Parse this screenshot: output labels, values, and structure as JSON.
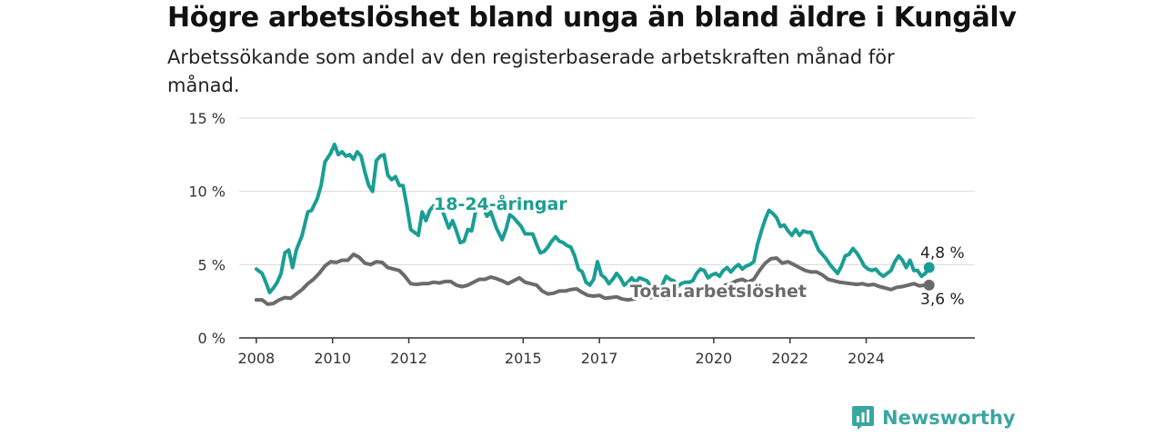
{
  "title": "Högre arbetslöshet bland unga än bland äldre i Kungälv",
  "subtitle": "Arbetssökande som andel av den registerbaserade arbetskraften månad för månad.",
  "brand": {
    "name": "Newsworthy",
    "color": "#3aa79f"
  },
  "chart_data": {
    "type": "line",
    "title": "Högre arbetslöshet bland unga än bland äldre i Kungälv",
    "subtitle": "Arbetssökande som andel av den registerbaserade arbetskraften månad för månad.",
    "ylim": [
      0,
      15
    ],
    "y_ticks": [
      0,
      5,
      10,
      15
    ],
    "y_tick_labels": [
      "0 %",
      "5 %",
      "10 %",
      "15 %"
    ],
    "x_ticks": [
      2008,
      2010,
      2012,
      2015,
      2017,
      2020,
      2022,
      2024
    ],
    "x_tick_labels": [
      "2008",
      "2010",
      "2012",
      "2015",
      "2017",
      "2020",
      "2022",
      "2024"
    ],
    "grid": "horizontal",
    "series": [
      {
        "name": "18-24-åringar",
        "color": "#1a9e93",
        "end_label": "4,8 %",
        "points": [
          [
            2008.0,
            4.7
          ],
          [
            2008.15,
            4.4
          ],
          [
            2008.25,
            3.8
          ],
          [
            2008.35,
            3.1
          ],
          [
            2008.45,
            3.4
          ],
          [
            2008.55,
            3.8
          ],
          [
            2008.65,
            4.4
          ],
          [
            2008.75,
            5.8
          ],
          [
            2008.85,
            6.0
          ],
          [
            2008.95,
            4.8
          ],
          [
            2009.05,
            6.0
          ],
          [
            2009.2,
            7.0
          ],
          [
            2009.35,
            8.6
          ],
          [
            2009.45,
            8.7
          ],
          [
            2009.6,
            9.5
          ],
          [
            2009.7,
            10.4
          ],
          [
            2009.8,
            12.0
          ],
          [
            2009.95,
            12.6
          ],
          [
            2010.05,
            13.2
          ],
          [
            2010.15,
            12.5
          ],
          [
            2010.25,
            12.7
          ],
          [
            2010.35,
            12.4
          ],
          [
            2010.45,
            12.5
          ],
          [
            2010.55,
            12.2
          ],
          [
            2010.65,
            12.7
          ],
          [
            2010.75,
            12.4
          ],
          [
            2010.85,
            11.3
          ],
          [
            2010.95,
            10.4
          ],
          [
            2011.05,
            10.0
          ],
          [
            2011.15,
            12.1
          ],
          [
            2011.25,
            12.4
          ],
          [
            2011.35,
            12.5
          ],
          [
            2011.45,
            11.1
          ],
          [
            2011.55,
            10.8
          ],
          [
            2011.65,
            11.0
          ],
          [
            2011.75,
            10.4
          ],
          [
            2011.85,
            10.4
          ],
          [
            2011.95,
            9.0
          ],
          [
            2012.05,
            7.4
          ],
          [
            2012.15,
            7.2
          ],
          [
            2012.25,
            7.0
          ],
          [
            2012.35,
            8.6
          ],
          [
            2012.45,
            8.0
          ],
          [
            2012.55,
            8.7
          ],
          [
            2012.65,
            9.0
          ],
          [
            2012.75,
            8.7
          ],
          [
            2012.85,
            8.9
          ],
          [
            2012.95,
            8.2
          ],
          [
            2013.05,
            7.5
          ],
          [
            2013.15,
            8.0
          ],
          [
            2013.25,
            7.3
          ],
          [
            2013.35,
            6.5
          ],
          [
            2013.45,
            6.6
          ],
          [
            2013.55,
            7.4
          ],
          [
            2013.65,
            7.3
          ],
          [
            2013.75,
            8.6
          ],
          [
            2013.85,
            9.2
          ],
          [
            2013.95,
            8.9
          ],
          [
            2014.05,
            8.3
          ],
          [
            2014.15,
            8.6
          ],
          [
            2014.3,
            7.5
          ],
          [
            2014.45,
            6.7
          ],
          [
            2014.55,
            7.4
          ],
          [
            2014.65,
            8.4
          ],
          [
            2014.75,
            8.2
          ],
          [
            2014.85,
            7.9
          ],
          [
            2014.95,
            7.6
          ],
          [
            2015.05,
            7.1
          ],
          [
            2015.15,
            7.1
          ],
          [
            2015.25,
            7.1
          ],
          [
            2015.35,
            6.4
          ],
          [
            2015.45,
            5.8
          ],
          [
            2015.55,
            5.9
          ],
          [
            2015.65,
            6.2
          ],
          [
            2015.75,
            6.6
          ],
          [
            2015.85,
            6.9
          ],
          [
            2015.95,
            6.6
          ],
          [
            2016.05,
            6.5
          ],
          [
            2016.15,
            6.3
          ],
          [
            2016.25,
            6.2
          ],
          [
            2016.35,
            5.6
          ],
          [
            2016.45,
            4.7
          ],
          [
            2016.55,
            4.5
          ],
          [
            2016.65,
            3.8
          ],
          [
            2016.75,
            3.6
          ],
          [
            2016.85,
            4.0
          ],
          [
            2016.95,
            5.2
          ],
          [
            2017.05,
            4.3
          ],
          [
            2017.15,
            4.1
          ],
          [
            2017.25,
            3.7
          ],
          [
            2017.35,
            4.0
          ],
          [
            2017.45,
            4.4
          ],
          [
            2017.55,
            4.1
          ],
          [
            2017.65,
            3.6
          ],
          [
            2017.75,
            3.8
          ],
          [
            2017.85,
            4.1
          ],
          [
            2017.95,
            3.8
          ],
          [
            2018.05,
            4.1
          ],
          [
            2018.15,
            4.0
          ],
          [
            2018.25,
            3.9
          ],
          [
            2018.35,
            3.5
          ],
          [
            2018.45,
            3.2
          ],
          [
            2018.55,
            3.1
          ],
          [
            2018.65,
            3.6
          ],
          [
            2018.75,
            4.2
          ],
          [
            2018.85,
            4.0
          ],
          [
            2018.95,
            3.9
          ],
          [
            2019.05,
            3.5
          ],
          [
            2019.15,
            3.7
          ],
          [
            2019.25,
            3.8
          ],
          [
            2019.35,
            3.8
          ],
          [
            2019.45,
            3.9
          ],
          [
            2019.55,
            4.4
          ],
          [
            2019.65,
            4.7
          ],
          [
            2019.75,
            4.6
          ],
          [
            2019.85,
            4.1
          ],
          [
            2019.95,
            4.3
          ],
          [
            2020.05,
            4.4
          ],
          [
            2020.15,
            4.2
          ],
          [
            2020.25,
            4.6
          ],
          [
            2020.35,
            4.8
          ],
          [
            2020.45,
            4.5
          ],
          [
            2020.55,
            4.8
          ],
          [
            2020.65,
            5.0
          ],
          [
            2020.75,
            4.7
          ],
          [
            2020.85,
            4.9
          ],
          [
            2020.95,
            5.0
          ],
          [
            2021.05,
            5.2
          ],
          [
            2021.15,
            6.4
          ],
          [
            2021.25,
            7.3
          ],
          [
            2021.35,
            8.1
          ],
          [
            2021.45,
            8.7
          ],
          [
            2021.55,
            8.5
          ],
          [
            2021.65,
            8.2
          ],
          [
            2021.75,
            7.6
          ],
          [
            2021.85,
            7.7
          ],
          [
            2021.95,
            7.3
          ],
          [
            2022.05,
            7.0
          ],
          [
            2022.15,
            7.4
          ],
          [
            2022.25,
            7.0
          ],
          [
            2022.35,
            7.3
          ],
          [
            2022.45,
            7.2
          ],
          [
            2022.55,
            7.2
          ],
          [
            2022.65,
            6.6
          ],
          [
            2022.75,
            6.0
          ],
          [
            2022.85,
            5.7
          ],
          [
            2022.95,
            5.4
          ],
          [
            2023.05,
            5.0
          ],
          [
            2023.15,
            4.7
          ],
          [
            2023.25,
            4.4
          ],
          [
            2023.35,
            4.9
          ],
          [
            2023.45,
            5.6
          ],
          [
            2023.55,
            5.7
          ],
          [
            2023.65,
            6.1
          ],
          [
            2023.75,
            5.8
          ],
          [
            2023.85,
            5.4
          ],
          [
            2023.95,
            4.9
          ],
          [
            2024.05,
            4.7
          ],
          [
            2024.15,
            4.6
          ],
          [
            2024.25,
            4.7
          ],
          [
            2024.35,
            4.4
          ],
          [
            2024.45,
            4.2
          ],
          [
            2024.55,
            4.4
          ],
          [
            2024.65,
            4.6
          ],
          [
            2024.75,
            5.2
          ],
          [
            2024.85,
            5.6
          ],
          [
            2024.95,
            5.3
          ],
          [
            2025.05,
            4.8
          ],
          [
            2025.15,
            5.3
          ],
          [
            2025.25,
            4.6
          ],
          [
            2025.35,
            4.6
          ],
          [
            2025.45,
            4.2
          ],
          [
            2025.55,
            4.4
          ],
          [
            2025.65,
            4.8
          ]
        ]
      },
      {
        "name": "Total arbetslöshet",
        "color": "#6b6b6b",
        "end_label": "3,6 %",
        "points": [
          [
            2008.0,
            2.6
          ],
          [
            2008.15,
            2.6
          ],
          [
            2008.3,
            2.3
          ],
          [
            2008.45,
            2.35
          ],
          [
            2008.6,
            2.6
          ],
          [
            2008.75,
            2.75
          ],
          [
            2008.9,
            2.7
          ],
          [
            2009.05,
            3.0
          ],
          [
            2009.2,
            3.3
          ],
          [
            2009.35,
            3.7
          ],
          [
            2009.5,
            4.0
          ],
          [
            2009.65,
            4.4
          ],
          [
            2009.8,
            4.9
          ],
          [
            2009.95,
            5.2
          ],
          [
            2010.1,
            5.15
          ],
          [
            2010.25,
            5.3
          ],
          [
            2010.4,
            5.3
          ],
          [
            2010.55,
            5.7
          ],
          [
            2010.7,
            5.5
          ],
          [
            2010.85,
            5.1
          ],
          [
            2011.0,
            5.0
          ],
          [
            2011.15,
            5.2
          ],
          [
            2011.3,
            5.15
          ],
          [
            2011.45,
            4.8
          ],
          [
            2011.6,
            4.7
          ],
          [
            2011.75,
            4.6
          ],
          [
            2011.9,
            4.2
          ],
          [
            2012.05,
            3.7
          ],
          [
            2012.2,
            3.65
          ],
          [
            2012.35,
            3.7
          ],
          [
            2012.5,
            3.7
          ],
          [
            2012.65,
            3.8
          ],
          [
            2012.8,
            3.75
          ],
          [
            2012.95,
            3.85
          ],
          [
            2013.1,
            3.85
          ],
          [
            2013.25,
            3.6
          ],
          [
            2013.4,
            3.5
          ],
          [
            2013.55,
            3.6
          ],
          [
            2013.7,
            3.8
          ],
          [
            2013.85,
            4.0
          ],
          [
            2014.0,
            4.0
          ],
          [
            2014.15,
            4.15
          ],
          [
            2014.3,
            4.05
          ],
          [
            2014.45,
            3.9
          ],
          [
            2014.6,
            3.7
          ],
          [
            2014.75,
            3.9
          ],
          [
            2014.9,
            4.1
          ],
          [
            2015.05,
            3.8
          ],
          [
            2015.2,
            3.7
          ],
          [
            2015.35,
            3.6
          ],
          [
            2015.5,
            3.2
          ],
          [
            2015.65,
            3.0
          ],
          [
            2015.8,
            3.05
          ],
          [
            2015.95,
            3.2
          ],
          [
            2016.1,
            3.2
          ],
          [
            2016.25,
            3.3
          ],
          [
            2016.4,
            3.35
          ],
          [
            2016.55,
            3.1
          ],
          [
            2016.7,
            2.9
          ],
          [
            2016.85,
            2.85
          ],
          [
            2017.0,
            2.9
          ],
          [
            2017.15,
            2.7
          ],
          [
            2017.3,
            2.75
          ],
          [
            2017.45,
            2.8
          ],
          [
            2017.6,
            2.65
          ],
          [
            2017.75,
            2.6
          ],
          [
            2017.9,
            2.65
          ],
          [
            2018.05,
            2.8
          ],
          [
            2018.2,
            2.75
          ],
          [
            2018.35,
            2.75
          ],
          [
            2018.5,
            2.9
          ],
          [
            2018.65,
            2.8
          ],
          [
            2018.8,
            2.7
          ],
          [
            2018.95,
            2.85
          ],
          [
            2019.1,
            2.9
          ],
          [
            2019.25,
            3.0
          ],
          [
            2019.4,
            3.1
          ],
          [
            2019.55,
            3.0
          ],
          [
            2019.7,
            3.2
          ],
          [
            2019.85,
            3.3
          ],
          [
            2020.0,
            3.35
          ],
          [
            2020.15,
            3.3
          ],
          [
            2020.3,
            3.6
          ],
          [
            2020.45,
            3.7
          ],
          [
            2020.6,
            3.9
          ],
          [
            2020.75,
            4.0
          ],
          [
            2020.9,
            3.8
          ],
          [
            2021.05,
            4.0
          ],
          [
            2021.2,
            4.6
          ],
          [
            2021.35,
            5.1
          ],
          [
            2021.5,
            5.4
          ],
          [
            2021.65,
            5.45
          ],
          [
            2021.8,
            5.1
          ],
          [
            2021.95,
            5.2
          ],
          [
            2022.1,
            5.0
          ],
          [
            2022.25,
            4.8
          ],
          [
            2022.4,
            4.6
          ],
          [
            2022.55,
            4.5
          ],
          [
            2022.7,
            4.5
          ],
          [
            2022.85,
            4.3
          ],
          [
            2023.0,
            4.0
          ],
          [
            2023.15,
            3.9
          ],
          [
            2023.3,
            3.8
          ],
          [
            2023.45,
            3.75
          ],
          [
            2023.6,
            3.7
          ],
          [
            2023.75,
            3.65
          ],
          [
            2023.9,
            3.7
          ],
          [
            2024.05,
            3.6
          ],
          [
            2024.2,
            3.65
          ],
          [
            2024.35,
            3.5
          ],
          [
            2024.5,
            3.4
          ],
          [
            2024.65,
            3.3
          ],
          [
            2024.8,
            3.45
          ],
          [
            2024.95,
            3.5
          ],
          [
            2025.1,
            3.6
          ],
          [
            2025.25,
            3.7
          ],
          [
            2025.4,
            3.55
          ],
          [
            2025.55,
            3.6
          ],
          [
            2025.65,
            3.6
          ]
        ]
      }
    ]
  }
}
